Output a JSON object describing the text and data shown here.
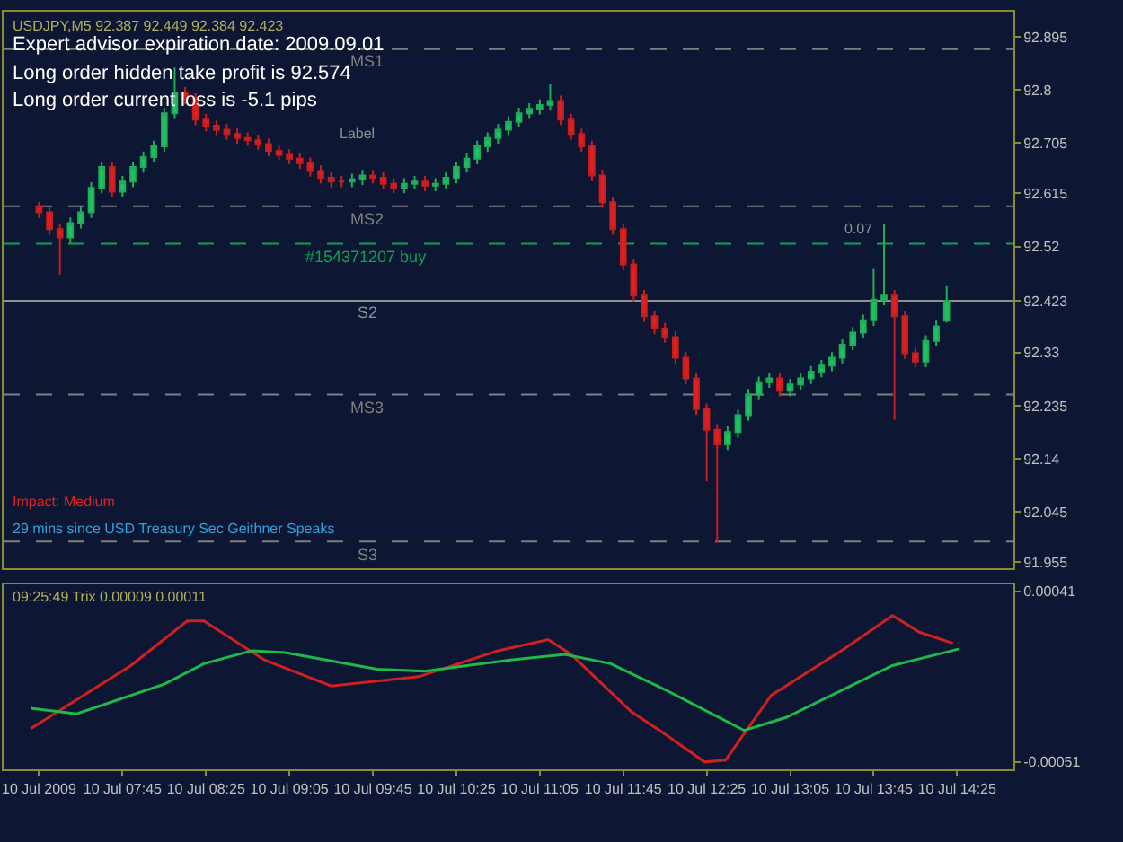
{
  "chart_data": [
    {
      "type": "candlestick",
      "title": "USDJPY,M5 92.387 92.449 92.384 92.423",
      "annotations": [
        "Expert advisor expiration date: 2009.09.01",
        "Long order hidden take profit is 92.574",
        "Long order current loss is -5.1 pips",
        "Impact: Medium",
        "29 mins since USD Treasury Sec Geithner Speaks",
        "Label",
        "0.07"
      ],
      "x": [
        "2009-07-10T07:05",
        "2009-07-10T07:10",
        "2009-07-10T07:15",
        "2009-07-10T07:20",
        "2009-07-10T07:25",
        "2009-07-10T07:30",
        "2009-07-10T07:35",
        "2009-07-10T07:40",
        "2009-07-10T07:45",
        "2009-07-10T07:50",
        "2009-07-10T07:55",
        "2009-07-10T08:00",
        "2009-07-10T08:05",
        "2009-07-10T08:10",
        "2009-07-10T08:15",
        "2009-07-10T08:20",
        "2009-07-10T08:25",
        "2009-07-10T08:30",
        "2009-07-10T08:35",
        "2009-07-10T08:40",
        "2009-07-10T08:45",
        "2009-07-10T08:50",
        "2009-07-10T08:55",
        "2009-07-10T09:00",
        "2009-07-10T09:05",
        "2009-07-10T09:10",
        "2009-07-10T09:15",
        "2009-07-10T09:20",
        "2009-07-10T09:25",
        "2009-07-10T09:30",
        "2009-07-10T09:35",
        "2009-07-10T09:40",
        "2009-07-10T09:45",
        "2009-07-10T09:50",
        "2009-07-10T09:55",
        "2009-07-10T10:00",
        "2009-07-10T10:05",
        "2009-07-10T10:10",
        "2009-07-10T10:15",
        "2009-07-10T10:20",
        "2009-07-10T10:25",
        "2009-07-10T10:30",
        "2009-07-10T10:35",
        "2009-07-10T10:40",
        "2009-07-10T10:45",
        "2009-07-10T10:50",
        "2009-07-10T10:55",
        "2009-07-10T11:00",
        "2009-07-10T11:05",
        "2009-07-10T11:10",
        "2009-07-10T11:15",
        "2009-07-10T11:20",
        "2009-07-10T11:25",
        "2009-07-10T11:30",
        "2009-07-10T11:35",
        "2009-07-10T11:40",
        "2009-07-10T11:45",
        "2009-07-10T11:50",
        "2009-07-10T11:55",
        "2009-07-10T12:00",
        "2009-07-10T12:05",
        "2009-07-10T12:10",
        "2009-07-10T12:15",
        "2009-07-10T12:20",
        "2009-07-10T12:25",
        "2009-07-10T12:30",
        "2009-07-10T12:35",
        "2009-07-10T12:40",
        "2009-07-10T12:45",
        "2009-07-10T12:50",
        "2009-07-10T12:55",
        "2009-07-10T13:00",
        "2009-07-10T13:05",
        "2009-07-10T13:10",
        "2009-07-10T13:15",
        "2009-07-10T13:20",
        "2009-07-10T13:25",
        "2009-07-10T13:30",
        "2009-07-10T13:35",
        "2009-07-10T13:40",
        "2009-07-10T13:45",
        "2009-07-10T13:50",
        "2009-07-10T13:55",
        "2009-07-10T14:00",
        "2009-07-10T14:05",
        "2009-07-10T14:10",
        "2009-07-10T14:15",
        "2009-07-10T14:20"
      ],
      "ohlc": [
        [
          92.59,
          92.6,
          92.571,
          92.581
        ],
        [
          92.581,
          92.591,
          92.541,
          92.551
        ],
        [
          92.551,
          92.561,
          92.47,
          92.536
        ],
        [
          92.536,
          92.572,
          92.526,
          92.562
        ],
        [
          92.562,
          92.591,
          92.552,
          92.581
        ],
        [
          92.581,
          92.635,
          92.571,
          92.625
        ],
        [
          92.625,
          92.672,
          92.615,
          92.662
        ],
        [
          92.662,
          92.672,
          92.608,
          92.618
        ],
        [
          92.618,
          92.646,
          92.608,
          92.636
        ],
        [
          92.636,
          92.672,
          92.626,
          92.662
        ],
        [
          92.662,
          92.69,
          92.652,
          92.68
        ],
        [
          92.68,
          92.709,
          92.67,
          92.699
        ],
        [
          92.699,
          92.768,
          92.689,
          92.758
        ],
        [
          92.758,
          92.84,
          92.748,
          92.795
        ],
        [
          92.795,
          92.805,
          92.774,
          92.784
        ],
        [
          92.784,
          92.794,
          92.737,
          92.747
        ],
        [
          92.747,
          92.757,
          92.726,
          92.736
        ],
        [
          92.736,
          92.746,
          92.719,
          92.729
        ],
        [
          92.729,
          92.739,
          92.711,
          92.721
        ],
        [
          92.721,
          92.731,
          92.704,
          92.714
        ],
        [
          92.714,
          92.724,
          92.7,
          92.71
        ],
        [
          92.71,
          92.72,
          92.693,
          92.703
        ],
        [
          92.703,
          92.713,
          92.681,
          92.691
        ],
        [
          92.691,
          92.701,
          92.674,
          92.684
        ],
        [
          92.684,
          92.694,
          92.667,
          92.677
        ],
        [
          92.677,
          92.687,
          92.659,
          92.669
        ],
        [
          92.669,
          92.679,
          92.645,
          92.655
        ],
        [
          92.655,
          92.665,
          92.633,
          92.643
        ],
        [
          92.643,
          92.653,
          92.626,
          92.636
        ],
        [
          92.636,
          92.646,
          92.626,
          92.636
        ],
        [
          92.636,
          92.65,
          92.626,
          92.64
        ],
        [
          92.64,
          92.657,
          92.63,
          92.647
        ],
        [
          92.647,
          92.657,
          92.633,
          92.643
        ],
        [
          92.643,
          92.653,
          92.622,
          92.632
        ],
        [
          92.632,
          92.642,
          92.615,
          92.625
        ],
        [
          92.625,
          92.642,
          92.615,
          92.632
        ],
        [
          92.632,
          92.646,
          92.622,
          92.636
        ],
        [
          92.636,
          92.646,
          92.619,
          92.629
        ],
        [
          92.629,
          92.642,
          92.619,
          92.632
        ],
        [
          92.632,
          92.653,
          92.622,
          92.643
        ],
        [
          92.643,
          92.672,
          92.633,
          92.662
        ],
        [
          92.662,
          92.687,
          92.652,
          92.677
        ],
        [
          92.677,
          92.709,
          92.667,
          92.699
        ],
        [
          92.699,
          92.724,
          92.689,
          92.714
        ],
        [
          92.714,
          92.739,
          92.704,
          92.729
        ],
        [
          92.729,
          92.753,
          92.719,
          92.743
        ],
        [
          92.743,
          92.768,
          92.733,
          92.758
        ],
        [
          92.758,
          92.776,
          92.748,
          92.766
        ],
        [
          92.766,
          92.783,
          92.756,
          92.773
        ],
        [
          92.773,
          92.81,
          92.763,
          92.78
        ],
        [
          92.78,
          92.79,
          92.737,
          92.747
        ],
        [
          92.747,
          92.757,
          92.711,
          92.721
        ],
        [
          92.721,
          92.731,
          92.689,
          92.699
        ],
        [
          92.699,
          92.709,
          92.637,
          92.647
        ],
        [
          92.647,
          92.657,
          92.589,
          92.599
        ],
        [
          92.599,
          92.609,
          92.541,
          92.551
        ],
        [
          92.551,
          92.561,
          92.478,
          92.488
        ],
        [
          92.488,
          92.498,
          92.422,
          92.432
        ],
        [
          92.432,
          92.442,
          92.385,
          92.395
        ],
        [
          92.395,
          92.405,
          92.363,
          92.373
        ],
        [
          92.373,
          92.383,
          92.348,
          92.358
        ],
        [
          92.358,
          92.368,
          92.311,
          92.321
        ],
        [
          92.321,
          92.331,
          92.274,
          92.284
        ],
        [
          92.284,
          92.294,
          92.219,
          92.229
        ],
        [
          92.229,
          92.239,
          92.1,
          92.192
        ],
        [
          92.192,
          92.202,
          91.99,
          92.166
        ],
        [
          92.166,
          92.198,
          92.156,
          92.188
        ],
        [
          92.188,
          92.228,
          92.178,
          92.218
        ],
        [
          92.218,
          92.265,
          92.208,
          92.255
        ],
        [
          92.255,
          92.287,
          92.245,
          92.277
        ],
        [
          92.277,
          92.294,
          92.267,
          92.284
        ],
        [
          92.284,
          92.294,
          92.252,
          92.262
        ],
        [
          92.262,
          92.283,
          92.252,
          92.273
        ],
        [
          92.273,
          92.294,
          92.263,
          92.284
        ],
        [
          92.284,
          92.306,
          92.274,
          92.296
        ],
        [
          92.296,
          92.317,
          92.286,
          92.307
        ],
        [
          92.307,
          92.331,
          92.297,
          92.321
        ],
        [
          92.321,
          92.354,
          92.311,
          92.344
        ],
        [
          92.344,
          92.376,
          92.334,
          92.366
        ],
        [
          92.366,
          92.398,
          92.356,
          92.388
        ],
        [
          92.388,
          92.48,
          92.378,
          92.425
        ],
        [
          92.425,
          92.56,
          92.415,
          92.432
        ],
        [
          92.432,
          92.442,
          92.21,
          92.395
        ],
        [
          92.395,
          92.405,
          92.319,
          92.329
        ],
        [
          92.329,
          92.339,
          92.304,
          92.314
        ],
        [
          92.314,
          92.361,
          92.304,
          92.351
        ],
        [
          92.351,
          92.387,
          92.341,
          92.377
        ],
        [
          92.387,
          92.449,
          92.384,
          92.423
        ]
      ],
      "xlim": [
        "2009-07-10T06:48",
        "2009-07-10T14:52"
      ],
      "ylim": [
        91.945,
        92.94
      ],
      "yticks": [
        92.895,
        92.8,
        92.705,
        92.615,
        92.52,
        {
          "value": 92.423,
          "label": "92.423"
        },
        92.33,
        92.235,
        92.14,
        92.045,
        91.955
      ],
      "ref_lines": [
        {
          "axis": "y",
          "value": 92.873,
          "label": "MS1",
          "color": "#808080",
          "line_style": "dashed"
        },
        {
          "axis": "y",
          "value": 92.592,
          "label": "MS2",
          "color": "#808080",
          "line_style": "dashed"
        },
        {
          "axis": "y",
          "value": 92.525,
          "label": "#154371207 buy",
          "color": "#10a050",
          "line_style": "dashed"
        },
        {
          "axis": "y",
          "value": 92.423,
          "label": "S2",
          "color": "#909090",
          "line_style": "solid"
        },
        {
          "axis": "y",
          "value": 92.255,
          "label": "MS3",
          "color": "#808080",
          "line_style": "dashed"
        },
        {
          "axis": "y",
          "value": 91.992,
          "label": "S3",
          "color": "#808080",
          "line_style": "dashed"
        }
      ],
      "tick_labels": "y",
      "grid": false,
      "legend": false
    },
    {
      "type": "line",
      "title": "09:25:49 Trix 0.00009 0.00011",
      "series": [
        {
          "color": "#d02020",
          "x": [
            "2009-07-10T07:01",
            "2009-07-10T07:49",
            "2009-07-10T08:16",
            "2009-07-10T08:24",
            "2009-07-10T08:53",
            "2009-07-10T09:25",
            "2009-07-10T10:07",
            "2009-07-10T10:45",
            "2009-07-10T11:09",
            "2009-07-10T11:20",
            "2009-07-10T11:49",
            "2009-07-10T12:05",
            "2009-07-10T12:24",
            "2009-07-10T12:34",
            "2009-07-10T12:56",
            "2009-07-10T13:31",
            "2009-07-10T13:54",
            "2009-07-10T14:07",
            "2009-07-10T14:23"
          ],
          "values": [
            -0.00033,
            1e-05,
            0.00025,
            0.00025,
            4e-05,
            -0.0001,
            -5e-05,
            9e-05,
            0.00015,
            7e-05,
            -0.00024,
            -0.00036,
            -0.00051,
            -0.0005,
            -0.00015,
            0.0001,
            0.00028,
            0.00019,
            0.00013
          ]
        },
        {
          "color": "#20b848",
          "x": [
            "2009-07-10T07:01",
            "2009-07-10T07:23",
            "2009-07-10T08:05",
            "2009-07-10T08:24",
            "2009-07-10T08:47",
            "2009-07-10T09:03",
            "2009-07-10T09:47",
            "2009-07-10T10:10",
            "2009-07-10T10:51",
            "2009-07-10T11:17",
            "2009-07-10T11:39",
            "2009-07-10T12:05",
            "2009-07-10T12:43",
            "2009-07-10T13:03",
            "2009-07-10T13:54",
            "2009-07-10T14:26"
          ],
          "values": [
            -0.00022,
            -0.00025,
            -9e-05,
            2e-05,
            9e-05,
            8e-05,
            -1e-05,
            -2e-05,
            4e-05,
            7e-05,
            2e-05,
            -0.00012,
            -0.00034,
            -0.00027,
            1e-05,
            0.0001
          ]
        }
      ],
      "xlim": [
        "2009-07-10T06:48",
        "2009-07-10T14:52"
      ],
      "xticks": [
        {
          "value": "2009-07-10T07:05",
          "label": "10 Jul 2009"
        },
        {
          "value": "2009-07-10T07:45",
          "label": "10 Jul 07:45"
        },
        {
          "value": "2009-07-10T08:25",
          "label": "10 Jul 08:25"
        },
        {
          "value": "2009-07-10T09:05",
          "label": "10 Jul 09:05"
        },
        {
          "value": "2009-07-10T09:45",
          "label": "10 Jul 09:45"
        },
        {
          "value": "2009-07-10T10:25",
          "label": "10 Jul 10:25"
        },
        {
          "value": "2009-07-10T11:05",
          "label": "10 Jul 11:05"
        },
        {
          "value": "2009-07-10T11:45",
          "label": "10 Jul 11:45"
        },
        {
          "value": "2009-07-10T12:25",
          "label": "10 Jul 12:25"
        },
        {
          "value": "2009-07-10T13:05",
          "label": "10 Jul 13:05"
        },
        {
          "value": "2009-07-10T13:45",
          "label": "10 Jul 13:45"
        },
        {
          "value": "2009-07-10T14:25",
          "label": "10 Jul 14:25"
        }
      ],
      "ylim": [
        -0.00055,
        0.00045
      ],
      "yticks": [
        0.00041,
        -0.00051
      ],
      "grid": false,
      "legend": false,
      "marker": "none",
      "line_style": "solid"
    }
  ]
}
